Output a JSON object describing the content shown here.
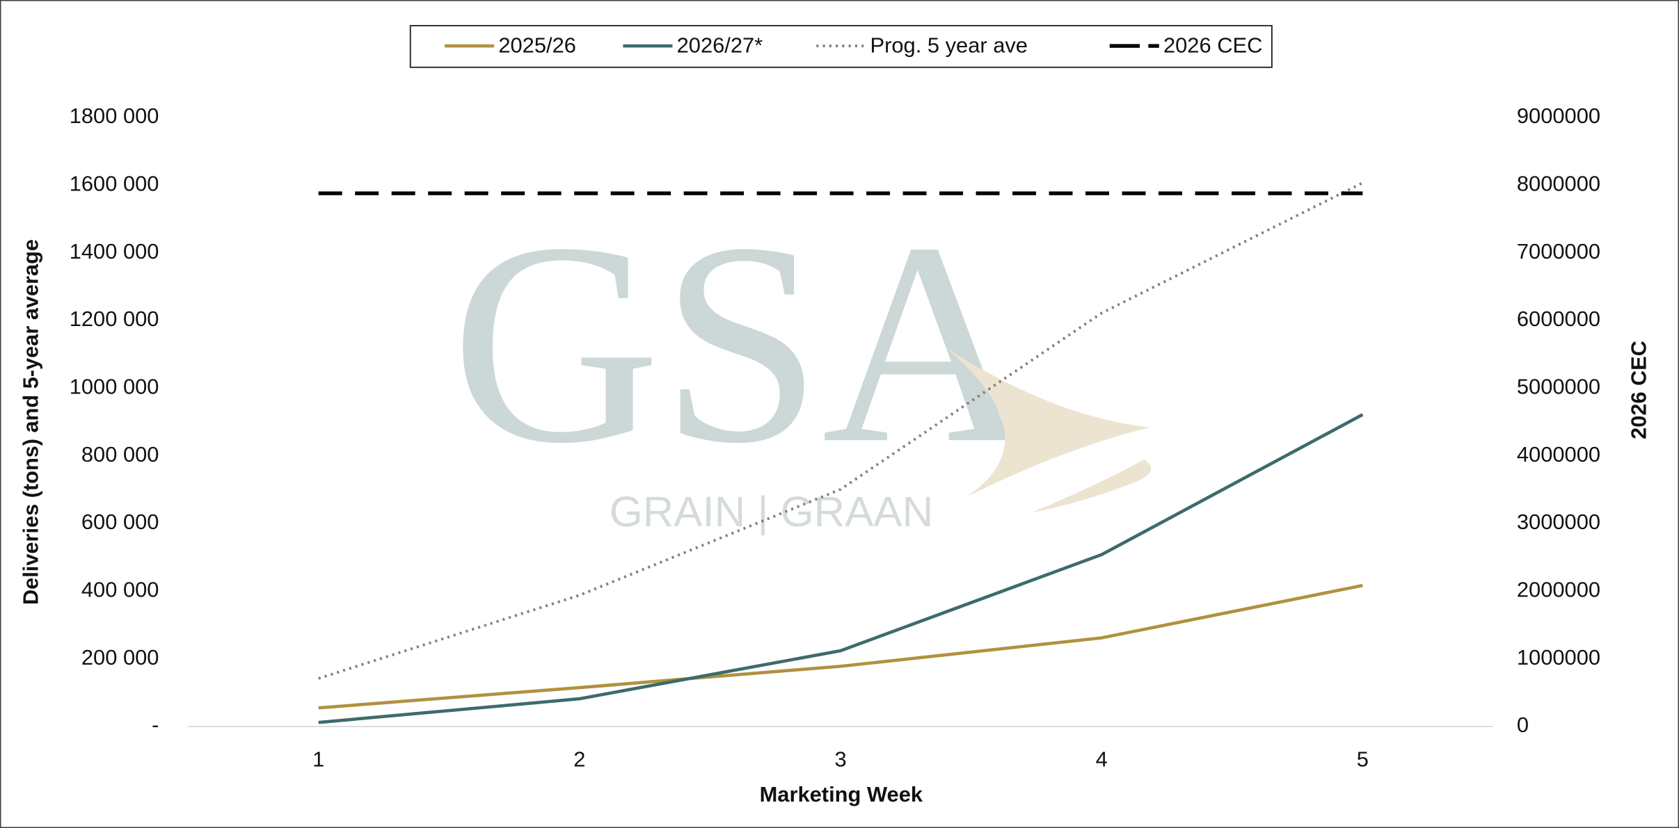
{
  "chart_data": {
    "type": "line",
    "y_label": "Deliveries (tons) and 5-year average",
    "y2_label": "2026 CEC",
    "x_label": "Marketing Week",
    "x": [
      1,
      2,
      3,
      4,
      5
    ],
    "xlim": [
      0.5,
      5.5
    ],
    "xticks": [
      1,
      2,
      3,
      4,
      5
    ],
    "ylim": [
      0,
      1800000
    ],
    "yticks": [
      {
        "value": 0,
        "label": "-"
      },
      {
        "value": 200000,
        "label": "200 000"
      },
      {
        "value": 400000,
        "label": "400 000"
      },
      {
        "value": 600000,
        "label": "600 000"
      },
      {
        "value": 800000,
        "label": "800 000"
      },
      {
        "value": 1000000,
        "label": "1000 000"
      },
      {
        "value": 1200000,
        "label": "1200 000"
      },
      {
        "value": 1400000,
        "label": "1400 000"
      },
      {
        "value": 1600000,
        "label": "1600 000"
      },
      {
        "value": 1800000,
        "label": "1800 000"
      }
    ],
    "y2lim": [
      0,
      9000000
    ],
    "y2ticks": [
      0,
      1000000,
      2000000,
      3000000,
      4000000,
      5000000,
      6000000,
      7000000,
      8000000,
      9000000
    ],
    "legend": "top",
    "grid": false,
    "series": [
      {
        "name": "2025/26",
        "color": "#b0913e",
        "style": "solid",
        "values": [
          55000,
          115000,
          178000,
          262000,
          417000
        ]
      },
      {
        "name": "2026/27*",
        "color": "#3d6b6b",
        "style": "solid",
        "values": [
          12000,
          82000,
          224000,
          508000,
          922000
        ]
      },
      {
        "name": "Prog. 5 year ave",
        "color": "#808080",
        "style": "dotted",
        "values": [
          142000,
          388000,
          701000,
          1222000,
          1607000
        ]
      },
      {
        "name": "2026 CEC",
        "color": "#000000",
        "style": "dashed",
        "axis": "y2",
        "values": [
          7880000,
          7880000,
          7880000,
          7880000,
          7880000
        ]
      }
    ],
    "watermark": {
      "logo": "GSA",
      "text": "GRAIN | GRAAN"
    }
  }
}
